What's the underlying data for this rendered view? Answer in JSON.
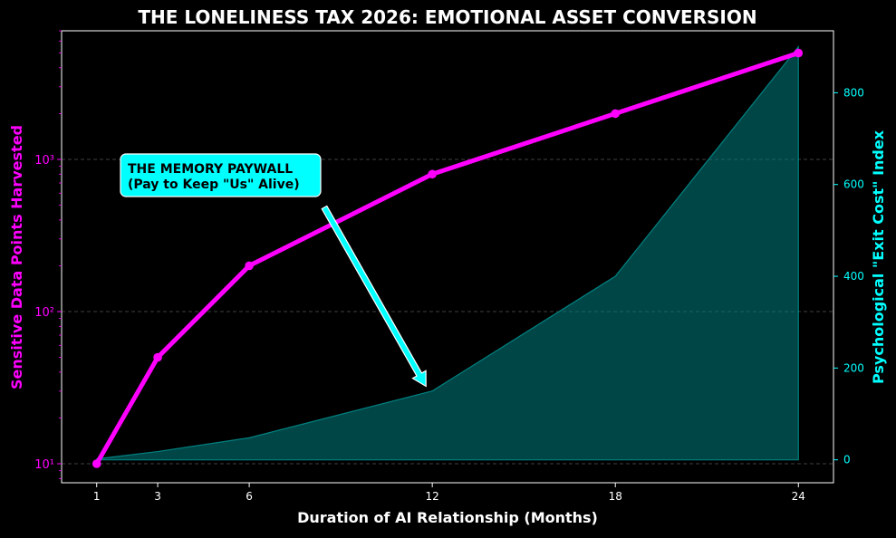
{
  "chart_data": {
    "type": "line",
    "title": "THE LONELINESS TAX 2026: EMOTIONAL ASSET CONVERSION",
    "xlabel": "Duration of AI Relationship (Months)",
    "ylabel_left": "Sensitive Data Points Harvested",
    "ylabel_right": "Psychological \"Exit Cost\" Index",
    "x": [
      1,
      3,
      6,
      12,
      18,
      24
    ],
    "xlim": [
      -0.15,
      25.15
    ],
    "y_left_scale": "log",
    "y_left_lim": [
      7.5,
      7000
    ],
    "y_right_lim": [
      -50,
      935
    ],
    "y_left_ticks": [
      10,
      100,
      1000
    ],
    "y_left_tick_labels": [
      "10¹",
      "10²",
      "10³"
    ],
    "y_right_ticks": [
      0,
      200,
      400,
      600,
      800
    ],
    "grid": "horizontal dashed",
    "series": [
      {
        "axis": "left",
        "kind": "line",
        "values": [
          10,
          50,
          200,
          800,
          2000,
          5000
        ],
        "color": "#ff00ff"
      },
      {
        "axis": "right",
        "kind": "area",
        "values": [
          2,
          18,
          48,
          150,
          400,
          900
        ],
        "color": "#008080"
      }
    ],
    "annotation": {
      "line1": "THE MEMORY PAYWALL",
      "line2": "(Pay to Keep \"Us\" Alive)",
      "points_to_x": 12,
      "points_to_y_right": 170,
      "bg_color": "#00ffff"
    },
    "colors": {
      "background": "#000000",
      "left_axis": "#ff00ff",
      "right_axis": "#00ffff",
      "text": "#ffffff"
    }
  }
}
